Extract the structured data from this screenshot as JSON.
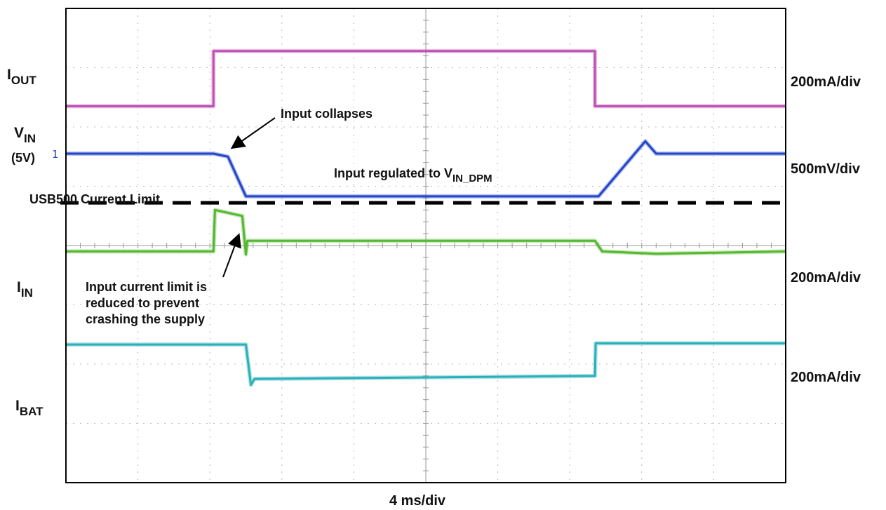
{
  "chart_data": {
    "type": "line",
    "xlabel": "4 ms/div",
    "x_divisions": 10,
    "y_divisions": 8,
    "grid": true,
    "series": [
      {
        "label_main": "I",
        "label_sub": "OUT",
        "label_extra": "",
        "scale": "200mA/div",
        "color": "#c04fb4",
        "marker": "",
        "x": [
          0,
          2.05,
          2.05,
          7.35,
          7.35,
          10
        ],
        "y_div": [
          6.35,
          6.35,
          7.28,
          7.28,
          6.35,
          6.35
        ]
      },
      {
        "label_main": "V",
        "label_sub": "IN",
        "label_extra": "(5V)",
        "scale": "500mV/div",
        "color": "#2246c9",
        "marker": "1",
        "x": [
          0,
          2.05,
          2.25,
          2.5,
          7.4,
          8.05,
          8.2,
          10
        ],
        "y_div": [
          5.55,
          5.55,
          5.5,
          4.83,
          4.83,
          5.76,
          5.55,
          5.55
        ]
      },
      {
        "label_main": "I",
        "label_sub": "IN",
        "label_extra": "",
        "scale": "200mA/div",
        "color": "#55b830",
        "marker": "",
        "x": [
          0,
          2.05,
          2.07,
          2.45,
          2.5,
          2.52,
          7.35,
          7.45,
          8.2,
          10
        ],
        "y_div": [
          3.9,
          3.9,
          4.6,
          4.5,
          3.85,
          4.08,
          4.08,
          3.9,
          3.86,
          3.9
        ],
        "annotation": "USB500 Current Limit",
        "limit_y_div": 4.72
      },
      {
        "label_main": "I",
        "label_sub": "BAT",
        "label_extra": "",
        "scale": "200mA/div",
        "color": "#2ab0b8",
        "marker": "",
        "x": [
          0,
          2.5,
          2.57,
          2.62,
          7.35,
          7.36,
          10
        ],
        "y_div": [
          2.33,
          2.33,
          1.65,
          1.75,
          1.8,
          2.35,
          2.35
        ]
      }
    ],
    "annotations": [
      {
        "text": "Input collapses"
      },
      {
        "text_main": "Input regulated to V",
        "text_sub": "IN_DPM"
      },
      {
        "lines": [
          "Input current limit is",
          "reduced to prevent",
          "crashing the supply"
        ]
      }
    ]
  }
}
